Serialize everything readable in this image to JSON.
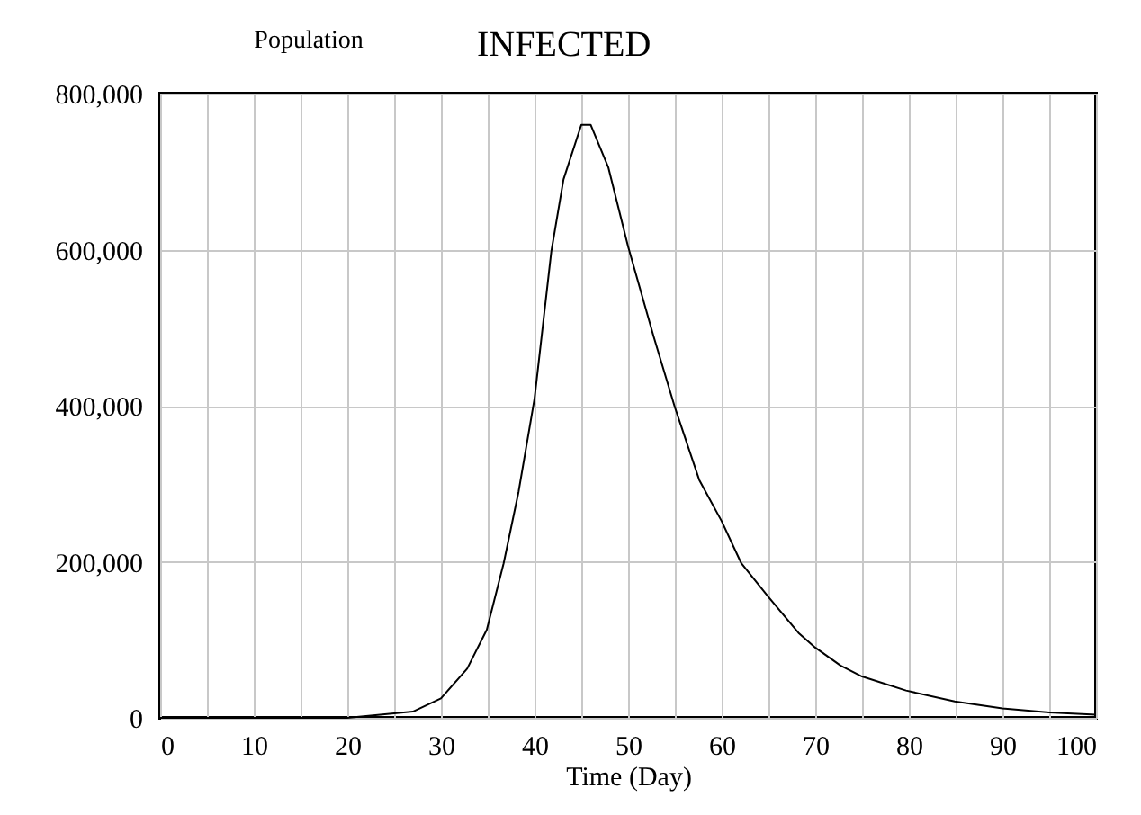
{
  "chart_data": {
    "type": "line",
    "title": "INFECTED",
    "xlabel": "Time (Day)",
    "ylabel": "Population",
    "x": [
      0,
      10,
      20,
      23.5,
      27,
      30,
      32.8,
      34.9,
      36.7,
      38.3,
      40,
      41.8,
      43.1,
      45,
      46,
      47.9,
      50,
      52.7,
      55,
      57.6,
      60,
      62.1,
      65,
      68.2,
      70,
      72.7,
      75,
      79.7,
      84.9,
      90,
      95,
      100
    ],
    "series": [
      {
        "color": "#000000",
        "values": [
          0,
          0,
          0,
          4000,
          8000,
          25000,
          63000,
          113000,
          198000,
          290000,
          409000,
          598000,
          690000,
          760000,
          760000,
          705000,
          604000,
          490000,
          398000,
          305000,
          252000,
          198000,
          155000,
          109000,
          90000,
          67000,
          53000,
          35000,
          21000,
          12000,
          7000,
          4000
        ]
      }
    ],
    "xlim": [
      0,
      100
    ],
    "ylim": [
      0,
      800000
    ],
    "xticks": [
      0,
      {
        "value": 5,
        "label": null
      },
      10,
      {
        "value": 15,
        "label": null
      },
      20,
      {
        "value": 25,
        "label": null
      },
      30,
      {
        "value": 35,
        "label": null
      },
      40,
      {
        "value": 45,
        "label": null
      },
      50,
      {
        "value": 55,
        "label": null
      },
      60,
      {
        "value": 65,
        "label": null
      },
      70,
      {
        "value": 75,
        "label": null
      },
      80,
      {
        "value": 85,
        "label": null
      },
      90,
      {
        "value": 95,
        "label": null
      },
      100
    ],
    "yticks": [
      {
        "value": 0,
        "label": "0"
      },
      {
        "value": 200000,
        "label": "200,000"
      },
      {
        "value": 400000,
        "label": "400,000"
      },
      {
        "value": 600000,
        "label": "600,000"
      },
      {
        "value": 800000,
        "label": "800,000"
      }
    ],
    "grid": true,
    "marker": "none",
    "line_style": "solid"
  }
}
